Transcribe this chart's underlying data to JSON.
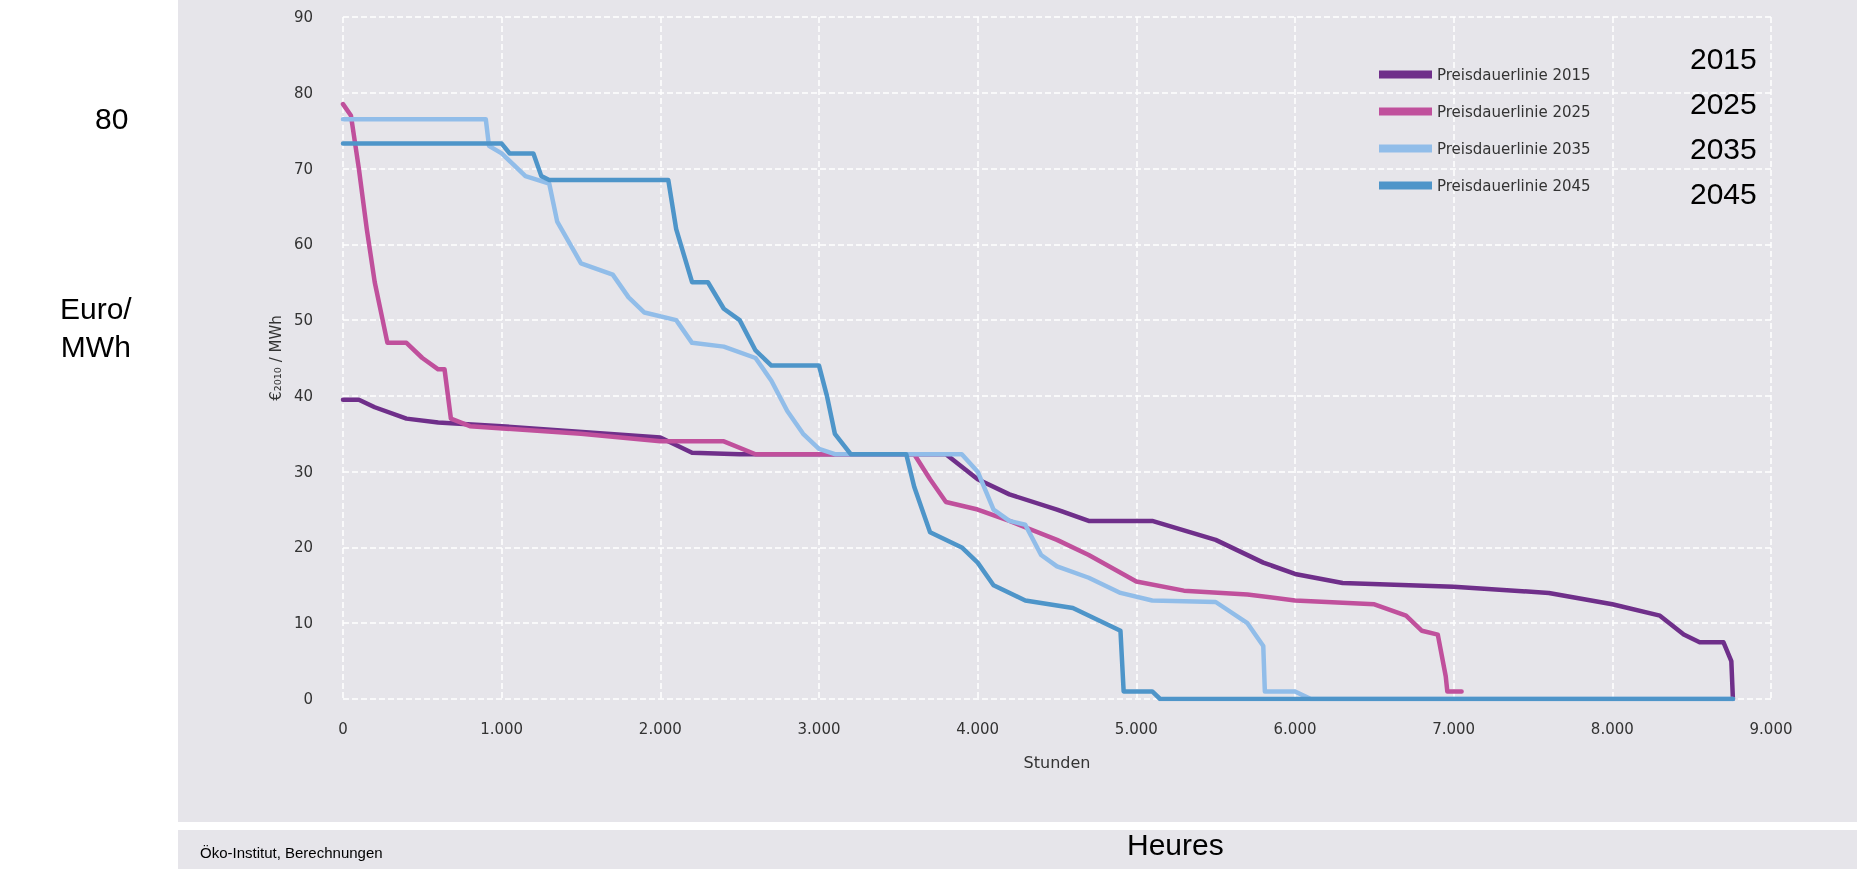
{
  "chart_data": {
    "type": "line",
    "xlabel": "Stunden",
    "ylabel": "€₂₀₁₀ / MWh",
    "xlim": [
      0,
      9000
    ],
    "xticks": [
      0,
      {
        "value": 1000,
        "label": "1.000"
      },
      {
        "value": 2000,
        "label": "2.000"
      },
      {
        "value": 3000,
        "label": "3.000"
      },
      {
        "value": 4000,
        "label": "4.000"
      },
      {
        "value": 5000,
        "label": "5.000"
      },
      {
        "value": 6000,
        "label": "6.000"
      },
      {
        "value": 7000,
        "label": "7.000"
      },
      {
        "value": 8000,
        "label": "8.000"
      },
      {
        "value": 9000,
        "label": "9.000"
      }
    ],
    "ylim": [
      0,
      90
    ],
    "yticks": [
      0,
      10,
      20,
      30,
      40,
      50,
      60,
      70,
      80,
      90
    ],
    "grid": true,
    "legend": "top right",
    "marker": "none",
    "line_style": "solid",
    "series": [
      {
        "name": "Preisdauerlinie 2015",
        "color": "#6f2f8a",
        "x": [
          0,
          100,
          200,
          400,
          600,
          1000,
          2000,
          2200,
          2500,
          3000,
          3800,
          4000,
          4200,
          4500,
          4700,
          5100,
          5500,
          5800,
          6000,
          6300,
          7000,
          7600,
          8000,
          8300,
          8450,
          8550,
          8700,
          8750,
          8760
        ],
        "values": [
          39.5,
          39.5,
          38.5,
          37,
          36.5,
          36,
          34.5,
          32.5,
          32.3,
          32.3,
          32.3,
          29,
          27,
          25,
          23.5,
          23.5,
          21,
          18,
          16.5,
          15.3,
          14.8,
          14,
          12.5,
          11,
          8.5,
          7.5,
          7.5,
          5,
          0
        ]
      },
      {
        "name": "Preisdauerlinie 2025",
        "color": "#c0509c",
        "x": [
          0,
          50,
          100,
          150,
          200,
          250,
          280,
          400,
          500,
          600,
          640,
          680,
          800,
          1500,
          2000,
          2400,
          2600,
          3000,
          3600,
          3700,
          3800,
          4000,
          4200,
          4500,
          4700,
          5000,
          5300,
          5700,
          6000,
          6500,
          6700,
          6800,
          6900,
          6950,
          6960,
          7050
        ],
        "values": [
          78.5,
          77,
          70,
          62,
          55,
          50,
          47,
          47,
          45,
          43.5,
          43.5,
          37,
          36,
          35,
          34,
          34,
          32.3,
          32.3,
          32.3,
          29,
          26,
          25,
          23.5,
          21,
          19,
          15.5,
          14.3,
          13.8,
          13,
          12.5,
          11,
          9,
          8.5,
          3,
          1,
          1
        ]
      },
      {
        "name": "Preisdauerlinie 2035",
        "color": "#91bde9",
        "x": [
          0,
          900,
          920,
          1000,
          1150,
          1300,
          1350,
          1500,
          1700,
          1800,
          1900,
          2100,
          2200,
          2400,
          2600,
          2700,
          2800,
          2900,
          3000,
          3100,
          3900,
          4000,
          4100,
          4200,
          4300,
          4400,
          4500,
          4700,
          4900,
          5100,
          5500,
          5700,
          5800,
          5810,
          6000,
          6100,
          8760
        ],
        "values": [
          76.5,
          76.5,
          73,
          72,
          69,
          68,
          63,
          57.5,
          56,
          53,
          51,
          50,
          47,
          46.5,
          45,
          42,
          38,
          35,
          33,
          32.3,
          32.3,
          30,
          25,
          23.5,
          23,
          19,
          17.5,
          16,
          14,
          13,
          12.8,
          10,
          7,
          1,
          1,
          0,
          0
        ]
      },
      {
        "name": "Preisdauerlinie 2045",
        "color": "#4e95c9",
        "x": [
          0,
          1000,
          1050,
          1200,
          1250,
          1300,
          2050,
          2100,
          2200,
          2300,
          2400,
          2500,
          2600,
          2700,
          3000,
          3050,
          3100,
          3200,
          3550,
          3600,
          3700,
          3900,
          4000,
          4100,
          4300,
          4600,
          4900,
          4920,
          5100,
          5150,
          8760
        ],
        "values": [
          73.3,
          73.3,
          72,
          72,
          69,
          68.5,
          68.5,
          62,
          55,
          55,
          51.5,
          50,
          46,
          44,
          44,
          40,
          35,
          32.3,
          32.3,
          28,
          22,
          20,
          18,
          15,
          13,
          12,
          9,
          1,
          1,
          0,
          0
        ]
      }
    ],
    "annotations": [
      "80",
      "Euro/\nMWh",
      "2015",
      "2025",
      "2035",
      "2045",
      "Heures",
      "Öko-Institut, Berechnungen"
    ]
  }
}
